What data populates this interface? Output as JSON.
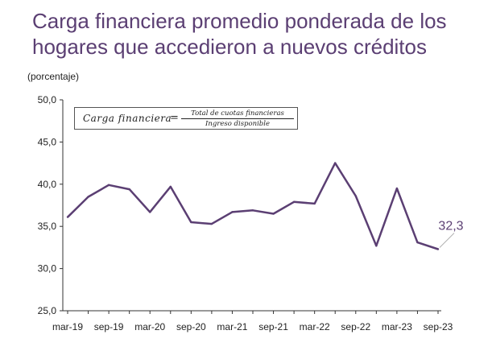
{
  "title": "Carga financiera promedio ponderada de los hogares que accedieron a nuevos créditos",
  "units_label": "(porcentaje)",
  "formula": {
    "lhs": "Carga financiera",
    "eq": "=",
    "numerator": "Total de cuotas financieras",
    "denominator": "Ingreso disponible"
  },
  "colors": {
    "title": "#5b3f73",
    "line": "#5b3f73",
    "axis": "#333333"
  },
  "chart_data": {
    "type": "line",
    "title": "Carga financiera promedio ponderada de los hogares que accedieron a nuevos créditos",
    "ylabel": "(porcentaje)",
    "xlabel": "",
    "ylim": [
      25,
      50
    ],
    "yticks": [
      "25,0",
      "30,0",
      "35,0",
      "40,0",
      "45,0",
      "50,0"
    ],
    "xtick_labels": [
      "mar-19",
      "sep-19",
      "mar-20",
      "sep-20",
      "mar-21",
      "sep-21",
      "mar-22",
      "sep-22",
      "mar-23",
      "sep-23"
    ],
    "grid": false,
    "x": [
      "mar-19",
      "jun-19",
      "sep-19",
      "dic-19",
      "mar-20",
      "jun-20",
      "sep-20",
      "dic-20",
      "mar-21",
      "jun-21",
      "sep-21",
      "dic-21",
      "mar-22",
      "jun-22",
      "sep-22",
      "dic-22",
      "mar-23",
      "jun-23",
      "sep-23"
    ],
    "series": [
      {
        "values": [
          36.1,
          38.5,
          39.9,
          39.4,
          36.7,
          39.7,
          35.5,
          35.3,
          36.7,
          36.9,
          36.5,
          37.9,
          37.7,
          42.5,
          38.6,
          32.7,
          39.5,
          33.1,
          32.3
        ]
      }
    ],
    "annotations": [
      {
        "x": "sep-23",
        "text": "32,3"
      }
    ]
  }
}
